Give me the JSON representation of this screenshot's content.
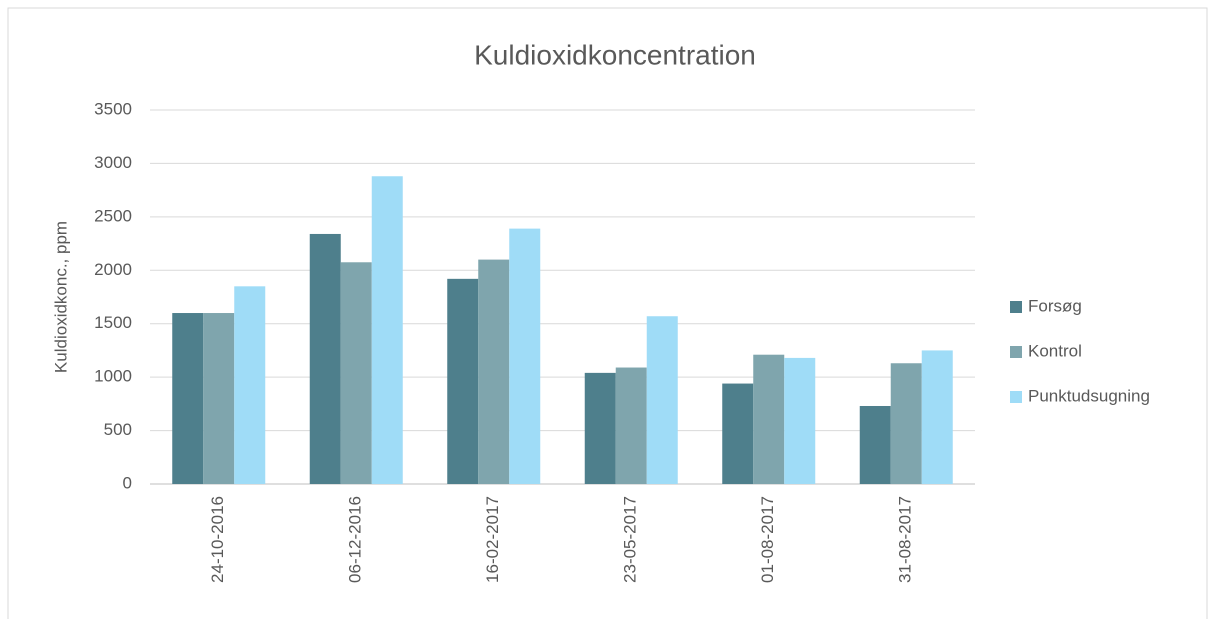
{
  "chart_data": {
    "type": "bar",
    "title": "Kuldioxidkoncentration",
    "ylabel": "Kuldioxidkonc., ppm",
    "categories": [
      "24-10-2016",
      "06-12-2016",
      "16-02-2017",
      "23-05-2017",
      "01-08-2017",
      "31-08-2017"
    ],
    "series": [
      {
        "name": "Forsøg",
        "color": "#4e7f8c",
        "values": [
          1600,
          2340,
          1920,
          1040,
          940,
          730
        ]
      },
      {
        "name": "Kontrol",
        "color": "#7fa5ad",
        "values": [
          1600,
          2075,
          2100,
          1090,
          1210,
          1130
        ]
      },
      {
        "name": "Punktudsugning",
        "color": "#9fdcf7",
        "values": [
          1850,
          2880,
          2390,
          1570,
          1180,
          1250
        ]
      }
    ],
    "ylim": [
      0,
      3500
    ],
    "yticks": [
      0,
      500,
      1000,
      1500,
      2000,
      2500,
      3000,
      3500
    ],
    "grid": true,
    "legend": "right"
  }
}
